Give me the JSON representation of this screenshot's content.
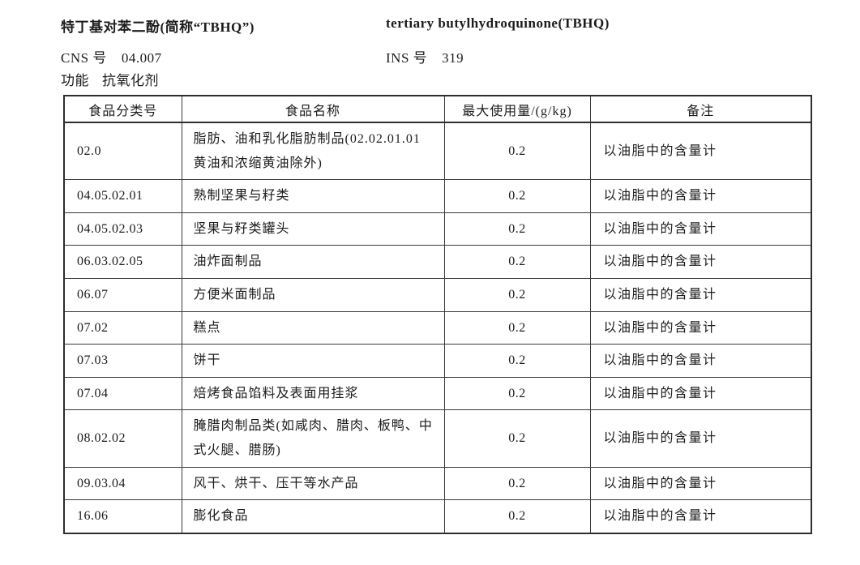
{
  "header": {
    "title_cn": "特丁基对苯二酚(简称“TBHQ”)",
    "title_en": "tertiary butylhydroquinone(TBHQ)",
    "cns_label": "CNS 号",
    "cns_value": "04.007",
    "ins_label": "INS 号",
    "ins_value": "319",
    "function_label": "功能",
    "function_value": "抗氧化剂"
  },
  "table": {
    "columns": [
      "食品分类号",
      "食品名称",
      "最大使用量/(g/kg)",
      "备注"
    ],
    "rows": [
      {
        "category": "02.0",
        "name": "脂肪、油和乳化脂肪制品(02.02.01.01黄油和浓缩黄油除外)",
        "max": "0.2",
        "remark": "以油脂中的含量计"
      },
      {
        "category": "04.05.02.01",
        "name": "熟制坚果与籽类",
        "max": "0.2",
        "remark": "以油脂中的含量计"
      },
      {
        "category": "04.05.02.03",
        "name": "坚果与籽类罐头",
        "max": "0.2",
        "remark": "以油脂中的含量计"
      },
      {
        "category": "06.03.02.05",
        "name": "油炸面制品",
        "max": "0.2",
        "remark": "以油脂中的含量计"
      },
      {
        "category": "06.07",
        "name": "方便米面制品",
        "max": "0.2",
        "remark": "以油脂中的含量计"
      },
      {
        "category": "07.02",
        "name": "糕点",
        "max": "0.2",
        "remark": "以油脂中的含量计"
      },
      {
        "category": "07.03",
        "name": "饼干",
        "max": "0.2",
        "remark": "以油脂中的含量计"
      },
      {
        "category": "07.04",
        "name": "焙烤食品馅料及表面用挂浆",
        "max": "0.2",
        "remark": "以油脂中的含量计"
      },
      {
        "category": "08.02.02",
        "name": "腌腊肉制品类(如咸肉、腊肉、板鸭、中式火腿、腊肠)",
        "max": "0.2",
        "remark": "以油脂中的含量计"
      },
      {
        "category": "09.03.04",
        "name": "风干、烘干、压干等水产品",
        "max": "0.2",
        "remark": "以油脂中的含量计"
      },
      {
        "category": "16.06",
        "name": "膨化食品",
        "max": "0.2",
        "remark": "以油脂中的含量计"
      }
    ]
  }
}
